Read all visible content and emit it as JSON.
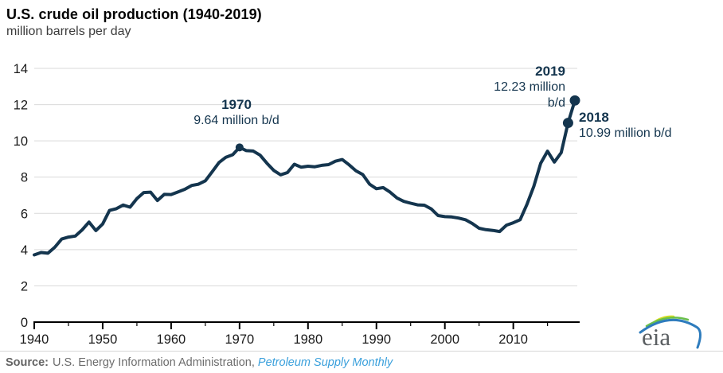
{
  "header": {
    "title": "U.S. crude oil production (1940-2019)",
    "subtitle": "million barrels per day"
  },
  "annotations": {
    "a1970": {
      "year": "1970",
      "value": "9.64 million b/d"
    },
    "a2019": {
      "year": "2019",
      "value_line1": "12.23 million",
      "value_line2": "b/d"
    },
    "a2018": {
      "year": "2018",
      "value": "10.99 million b/d"
    }
  },
  "footer": {
    "source_label": "Source:",
    "source_text": "U.S. Energy Information Administration, ",
    "source_publication": "Petroleum Supply Monthly",
    "link_color": "#3aa0dc"
  },
  "logo": {
    "text": "eia"
  },
  "chart_data": {
    "type": "line",
    "title": "U.S. crude oil production (1940-2019)",
    "ylabel": "million barrels per day",
    "xlabel": "",
    "x_range": [
      1940,
      2019
    ],
    "ylim": [
      0,
      14
    ],
    "yticks": [
      0,
      2,
      4,
      6,
      8,
      10,
      12,
      14
    ],
    "xticks": [
      1940,
      1950,
      1960,
      1970,
      1980,
      1990,
      2000,
      2010
    ],
    "xticks_minor": [
      1945,
      1955,
      1965,
      1975,
      1985,
      1995,
      2005,
      2015
    ],
    "grid": "horizontal",
    "legend": "none",
    "years": [
      1940,
      1941,
      1942,
      1943,
      1944,
      1945,
      1946,
      1947,
      1948,
      1949,
      1950,
      1951,
      1952,
      1953,
      1954,
      1955,
      1956,
      1957,
      1958,
      1959,
      1960,
      1961,
      1962,
      1963,
      1964,
      1965,
      1966,
      1967,
      1968,
      1969,
      1970,
      1971,
      1972,
      1973,
      1974,
      1975,
      1976,
      1977,
      1978,
      1979,
      1980,
      1981,
      1982,
      1983,
      1984,
      1985,
      1986,
      1987,
      1988,
      1989,
      1990,
      1991,
      1992,
      1993,
      1994,
      1995,
      1996,
      1997,
      1998,
      1999,
      2000,
      2001,
      2002,
      2003,
      2004,
      2005,
      2006,
      2007,
      2008,
      2009,
      2010,
      2011,
      2012,
      2013,
      2014,
      2015,
      2016,
      2017,
      2018,
      2019
    ],
    "values": [
      3.71,
      3.84,
      3.8,
      4.13,
      4.58,
      4.69,
      4.75,
      5.09,
      5.52,
      5.05,
      5.41,
      6.16,
      6.26,
      6.46,
      6.34,
      6.81,
      7.15,
      7.17,
      6.71,
      7.05,
      7.04,
      7.18,
      7.33,
      7.54,
      7.61,
      7.8,
      8.3,
      8.81,
      9.1,
      9.24,
      9.64,
      9.46,
      9.44,
      9.21,
      8.77,
      8.37,
      8.13,
      8.25,
      8.71,
      8.55,
      8.6,
      8.57,
      8.65,
      8.69,
      8.88,
      8.97,
      8.68,
      8.35,
      8.14,
      7.61,
      7.36,
      7.42,
      7.17,
      6.85,
      6.66,
      6.56,
      6.47,
      6.45,
      6.25,
      5.88,
      5.82,
      5.8,
      5.74,
      5.65,
      5.44,
      5.18,
      5.1,
      5.06,
      5.0,
      5.35,
      5.48,
      5.65,
      6.5,
      7.49,
      8.76,
      9.43,
      8.83,
      9.35,
      10.99,
      12.23
    ],
    "markers": [
      {
        "year": 1970,
        "value": 9.64,
        "label": "1970: 9.64 million b/d"
      },
      {
        "year": 2018,
        "value": 10.99,
        "label": "2018: 10.99 million b/d"
      },
      {
        "year": 2019,
        "value": 12.23,
        "label": "2019: 12.23 million b/d"
      }
    ],
    "colors": {
      "line": "#14354e",
      "grid": "#d9d9d9",
      "axis": "#000000",
      "annotation_text": "#14354e"
    }
  }
}
